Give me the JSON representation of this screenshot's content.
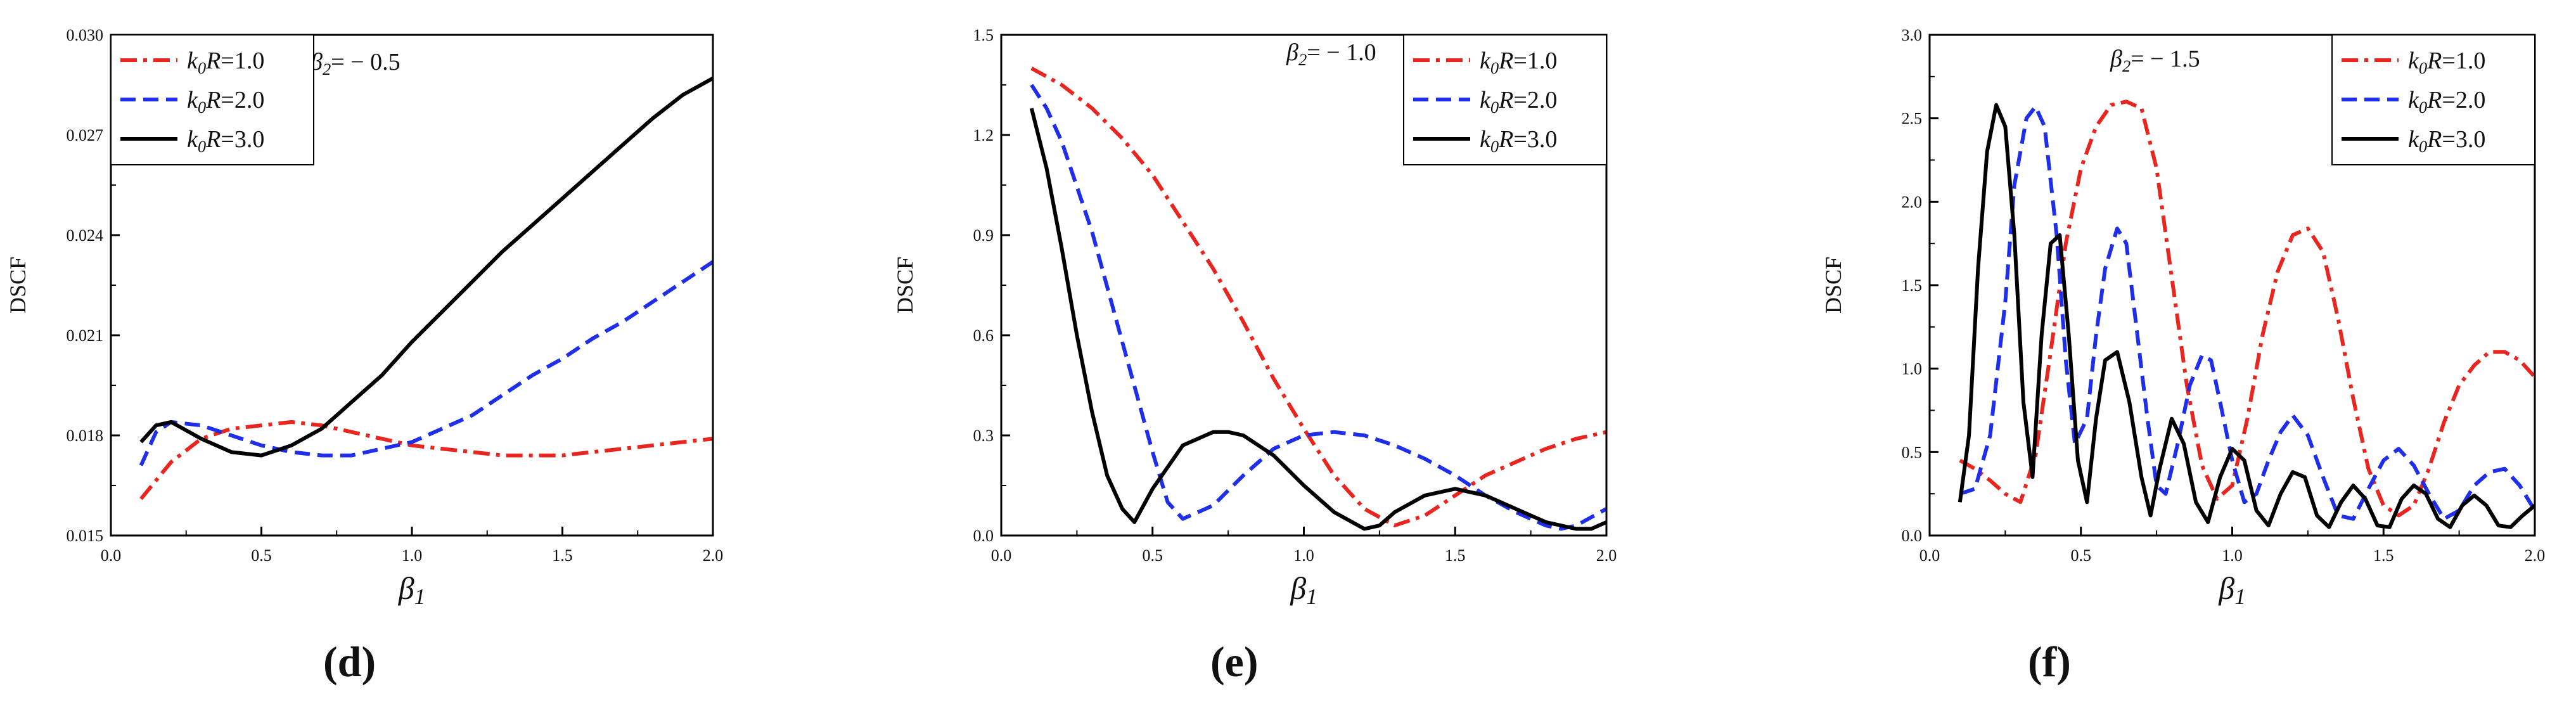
{
  "chart_data": [
    {
      "type": "line",
      "panel_label": "(d)",
      "ylabel": "DSCF",
      "xlabel": "β1",
      "xlim": [
        0,
        2.0
      ],
      "ylim": [
        0.015,
        0.03
      ],
      "xticks": [
        "0.0",
        "0.5",
        "1.0",
        "1.5",
        "2.0"
      ],
      "yticks": [
        "0.015",
        "0.018",
        "0.021",
        "0.024",
        "0.027",
        "0.030"
      ],
      "annotation": "β2= − 0.5",
      "legend_position": "top-left",
      "series": [
        {
          "name": "k0R=1.0",
          "color": "#e8251f",
          "dash": "dashdot",
          "x": [
            0.1,
            0.2,
            0.3,
            0.4,
            0.5,
            0.6,
            0.7,
            0.8,
            0.9,
            1.0,
            1.1,
            1.2,
            1.3,
            1.4,
            1.5,
            1.6,
            1.7,
            1.8,
            1.9,
            2.0
          ],
          "y": [
            0.0161,
            0.0172,
            0.0179,
            0.0182,
            0.0183,
            0.0184,
            0.0183,
            0.0181,
            0.0179,
            0.0177,
            0.0176,
            0.0175,
            0.0174,
            0.0174,
            0.0174,
            0.0175,
            0.0176,
            0.0177,
            0.0178,
            0.0179
          ]
        },
        {
          "name": "k0R=2.0",
          "color": "#1f2ee8",
          "dash": "dash",
          "x": [
            0.1,
            0.15,
            0.2,
            0.3,
            0.4,
            0.5,
            0.6,
            0.7,
            0.8,
            0.9,
            1.0,
            1.1,
            1.2,
            1.3,
            1.4,
            1.5,
            1.6,
            1.7,
            1.8,
            1.9,
            2.0
          ],
          "y": [
            0.0171,
            0.0181,
            0.0184,
            0.0183,
            0.018,
            0.0177,
            0.0175,
            0.0174,
            0.0174,
            0.0176,
            0.0178,
            0.0182,
            0.0186,
            0.0192,
            0.0198,
            0.0203,
            0.0209,
            0.0214,
            0.022,
            0.0226,
            0.0232
          ]
        },
        {
          "name": "k0R=3.0",
          "color": "#000000",
          "dash": "solid",
          "x": [
            0.1,
            0.15,
            0.2,
            0.3,
            0.4,
            0.5,
            0.6,
            0.7,
            0.8,
            0.9,
            1.0,
            1.1,
            1.2,
            1.3,
            1.4,
            1.5,
            1.6,
            1.7,
            1.8,
            1.9,
            2.0
          ],
          "y": [
            0.0178,
            0.0183,
            0.0184,
            0.0179,
            0.0175,
            0.0174,
            0.0177,
            0.0182,
            0.019,
            0.0198,
            0.0208,
            0.0217,
            0.0226,
            0.0235,
            0.0243,
            0.0251,
            0.0259,
            0.0267,
            0.0275,
            0.0282,
            0.0287
          ]
        }
      ]
    },
    {
      "type": "line",
      "panel_label": "(e)",
      "ylabel": "DSCF",
      "xlabel": "β1",
      "xlim": [
        0,
        2.0
      ],
      "ylim": [
        0,
        1.5
      ],
      "xticks": [
        "0.0",
        "0.5",
        "1.0",
        "1.5",
        "2.0"
      ],
      "yticks": [
        "0.0",
        "0.3",
        "0.6",
        "0.9",
        "1.2",
        "1.5"
      ],
      "annotation": "β2= − 1.0",
      "legend_position": "top-right",
      "series": [
        {
          "name": "k0R=1.0",
          "color": "#e8251f",
          "dash": "dashdot",
          "x": [
            0.1,
            0.2,
            0.3,
            0.4,
            0.5,
            0.6,
            0.7,
            0.8,
            0.9,
            1.0,
            1.1,
            1.2,
            1.3,
            1.4,
            1.5,
            1.6,
            1.7,
            1.8,
            1.9,
            2.0
          ],
          "y": [
            1.4,
            1.35,
            1.28,
            1.19,
            1.08,
            0.94,
            0.8,
            0.64,
            0.47,
            0.32,
            0.18,
            0.08,
            0.03,
            0.06,
            0.12,
            0.18,
            0.22,
            0.26,
            0.29,
            0.31
          ]
        },
        {
          "name": "k0R=2.0",
          "color": "#1f2ee8",
          "dash": "dash",
          "x": [
            0.1,
            0.15,
            0.2,
            0.3,
            0.4,
            0.5,
            0.55,
            0.6,
            0.7,
            0.8,
            0.9,
            1.0,
            1.1,
            1.2,
            1.3,
            1.4,
            1.5,
            1.6,
            1.7,
            1.8,
            1.85,
            1.9,
            2.0
          ],
          "y": [
            1.35,
            1.28,
            1.18,
            0.91,
            0.58,
            0.25,
            0.1,
            0.05,
            0.09,
            0.18,
            0.26,
            0.3,
            0.31,
            0.3,
            0.27,
            0.23,
            0.18,
            0.12,
            0.07,
            0.03,
            0.02,
            0.03,
            0.08
          ]
        },
        {
          "name": "k0R=3.0",
          "color": "#000000",
          "dash": "solid",
          "x": [
            0.1,
            0.15,
            0.2,
            0.25,
            0.3,
            0.35,
            0.4,
            0.44,
            0.5,
            0.6,
            0.7,
            0.75,
            0.8,
            0.9,
            1.0,
            1.1,
            1.2,
            1.25,
            1.3,
            1.4,
            1.5,
            1.6,
            1.7,
            1.8,
            1.9,
            1.95,
            2.0
          ],
          "y": [
            1.28,
            1.1,
            0.86,
            0.6,
            0.37,
            0.18,
            0.08,
            0.04,
            0.14,
            0.27,
            0.31,
            0.31,
            0.3,
            0.24,
            0.15,
            0.07,
            0.02,
            0.03,
            0.07,
            0.12,
            0.14,
            0.12,
            0.08,
            0.04,
            0.02,
            0.02,
            0.04
          ]
        }
      ]
    },
    {
      "type": "line",
      "panel_label": "(f)",
      "ylabel": "DSCF",
      "xlabel": "β1",
      "xlim": [
        0,
        2.0
      ],
      "ylim": [
        0,
        3.0
      ],
      "xticks": [
        "0.0",
        "0.5",
        "1.0",
        "1.5",
        "2.0"
      ],
      "yticks": [
        "0.0",
        "0.5",
        "1.0",
        "1.5",
        "2.0",
        "2.5",
        "3.0"
      ],
      "annotation": "β2= − 1.5",
      "legend_position": "top-right",
      "series": [
        {
          "name": "k0R=1.0",
          "color": "#e8251f",
          "dash": "dashdot",
          "x": [
            0.1,
            0.15,
            0.2,
            0.25,
            0.3,
            0.35,
            0.4,
            0.45,
            0.5,
            0.55,
            0.6,
            0.65,
            0.7,
            0.75,
            0.8,
            0.85,
            0.9,
            0.95,
            1.0,
            1.05,
            1.1,
            1.15,
            1.2,
            1.25,
            1.3,
            1.35,
            1.4,
            1.45,
            1.5,
            1.55,
            1.6,
            1.65,
            1.7,
            1.75,
            1.8,
            1.85,
            1.9,
            1.95,
            2.0
          ],
          "y": [
            0.45,
            0.4,
            0.33,
            0.25,
            0.2,
            0.48,
            1.1,
            1.75,
            2.2,
            2.45,
            2.58,
            2.6,
            2.56,
            2.2,
            1.55,
            0.9,
            0.42,
            0.22,
            0.3,
            0.7,
            1.2,
            1.58,
            1.8,
            1.84,
            1.7,
            1.3,
            0.82,
            0.4,
            0.18,
            0.12,
            0.18,
            0.4,
            0.68,
            0.9,
            1.02,
            1.1,
            1.1,
            1.05,
            0.95
          ]
        },
        {
          "name": "k0R=2.0",
          "color": "#1f2ee8",
          "dash": "dash",
          "x": [
            0.1,
            0.15,
            0.2,
            0.25,
            0.28,
            0.32,
            0.35,
            0.38,
            0.42,
            0.45,
            0.48,
            0.52,
            0.55,
            0.58,
            0.62,
            0.65,
            0.68,
            0.72,
            0.75,
            0.78,
            0.82,
            0.86,
            0.9,
            0.93,
            0.96,
            1.0,
            1.04,
            1.08,
            1.12,
            1.16,
            1.2,
            1.25,
            1.3,
            1.35,
            1.4,
            1.45,
            1.5,
            1.55,
            1.6,
            1.65,
            1.7,
            1.75,
            1.8,
            1.85,
            1.9,
            1.95,
            2.0
          ],
          "y": [
            0.25,
            0.28,
            0.6,
            1.4,
            2.1,
            2.5,
            2.57,
            2.45,
            1.8,
            1.05,
            0.55,
            0.7,
            1.2,
            1.6,
            1.84,
            1.75,
            1.3,
            0.7,
            0.3,
            0.25,
            0.55,
            0.9,
            1.08,
            1.05,
            0.8,
            0.45,
            0.2,
            0.25,
            0.45,
            0.62,
            0.72,
            0.6,
            0.35,
            0.12,
            0.1,
            0.28,
            0.45,
            0.52,
            0.42,
            0.25,
            0.1,
            0.15,
            0.3,
            0.38,
            0.4,
            0.3,
            0.15
          ]
        },
        {
          "name": "k0R=3.0",
          "color": "#000000",
          "dash": "solid",
          "x": [
            0.1,
            0.13,
            0.16,
            0.19,
            0.22,
            0.25,
            0.28,
            0.31,
            0.34,
            0.37,
            0.4,
            0.43,
            0.46,
            0.49,
            0.52,
            0.55,
            0.58,
            0.62,
            0.66,
            0.7,
            0.73,
            0.76,
            0.8,
            0.84,
            0.88,
            0.92,
            0.96,
            1.0,
            1.04,
            1.08,
            1.12,
            1.16,
            1.2,
            1.24,
            1.28,
            1.32,
            1.36,
            1.4,
            1.44,
            1.48,
            1.52,
            1.56,
            1.6,
            1.64,
            1.68,
            1.72,
            1.76,
            1.8,
            1.84,
            1.88,
            1.92,
            1.96,
            2.0
          ],
          "y": [
            0.2,
            0.6,
            1.6,
            2.3,
            2.58,
            2.45,
            1.8,
            0.8,
            0.35,
            1.2,
            1.75,
            1.8,
            1.2,
            0.45,
            0.2,
            0.7,
            1.05,
            1.1,
            0.8,
            0.35,
            0.12,
            0.4,
            0.7,
            0.55,
            0.2,
            0.08,
            0.35,
            0.52,
            0.45,
            0.15,
            0.06,
            0.25,
            0.38,
            0.35,
            0.12,
            0.05,
            0.2,
            0.3,
            0.22,
            0.06,
            0.05,
            0.22,
            0.3,
            0.25,
            0.1,
            0.05,
            0.18,
            0.24,
            0.18,
            0.06,
            0.05,
            0.12,
            0.18
          ]
        }
      ]
    }
  ]
}
